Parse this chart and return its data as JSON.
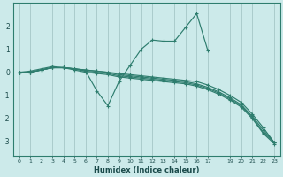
{
  "xlabel": "Humidex (Indice chaleur)",
  "ylabel": "",
  "bg_color": "#cceaea",
  "grid_color": "#aacccc",
  "line_color": "#2e7d6e",
  "xlim": [
    -0.5,
    23.5
  ],
  "ylim": [
    -3.6,
    3.0
  ],
  "yticks": [
    -3,
    -2,
    -1,
    0,
    1,
    2
  ],
  "xtick_vals": [
    0,
    1,
    2,
    3,
    4,
    5,
    6,
    7,
    8,
    9,
    10,
    11,
    12,
    13,
    14,
    15,
    16,
    17,
    19,
    20,
    21,
    22,
    23
  ],
  "series": [
    [
      0.0,
      0.0,
      0.1,
      0.2,
      0.2,
      0.15,
      0.1,
      0.05,
      0.0,
      -0.05,
      -0.1,
      -0.15,
      -0.2,
      -0.25,
      -0.3,
      -0.35,
      -0.4,
      -0.55,
      -0.75,
      -1.0,
      -1.3,
      -1.8,
      -2.4,
      -3.05
    ],
    [
      0.0,
      0.0,
      0.1,
      0.2,
      0.2,
      0.15,
      0.1,
      0.05,
      0.0,
      -0.1,
      -0.15,
      -0.2,
      -0.25,
      -0.3,
      -0.35,
      -0.4,
      -0.5,
      -0.65,
      -0.85,
      -1.1,
      -1.4,
      -1.9,
      -2.5,
      -3.05
    ],
    [
      0.0,
      0.0,
      0.1,
      0.2,
      0.2,
      0.15,
      0.05,
      0.0,
      -0.05,
      -0.15,
      -0.2,
      -0.25,
      -0.3,
      -0.35,
      -0.4,
      -0.45,
      -0.55,
      -0.7,
      -0.9,
      -1.15,
      -1.45,
      -1.95,
      -2.6,
      -3.05
    ],
    [
      0.0,
      0.0,
      0.1,
      0.2,
      0.2,
      0.1,
      0.0,
      -0.05,
      -0.1,
      -0.2,
      -0.25,
      -0.3,
      -0.35,
      -0.4,
      -0.45,
      -0.5,
      -0.6,
      -0.75,
      -0.95,
      -1.2,
      -1.5,
      -2.0,
      -2.65,
      -3.1
    ],
    [
      0.0,
      0.05,
      0.15,
      0.25,
      0.2,
      0.15,
      0.05,
      -0.8,
      -1.45,
      -0.4,
      0.3,
      1.0,
      1.4,
      1.35,
      1.35,
      1.95,
      2.55,
      0.95,
      null,
      null,
      null,
      null,
      null,
      null
    ]
  ]
}
